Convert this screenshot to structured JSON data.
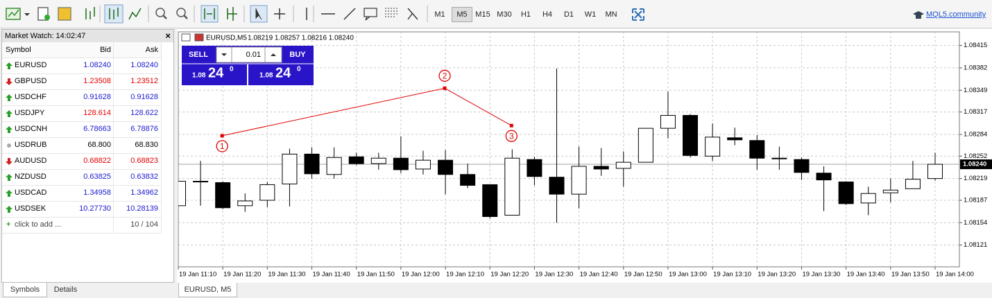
{
  "toolbar": {
    "timeframes": [
      "M1",
      "M5",
      "M15",
      "M30",
      "H1",
      "H4",
      "D1",
      "W1",
      "MN"
    ],
    "active_timeframe": "M5",
    "community_link": "MQL5.community"
  },
  "market_watch": {
    "title": "Market Watch: 14:02:47",
    "columns": [
      "Symbol",
      "Bid",
      "Ask"
    ],
    "rows": [
      {
        "symbol": "EURUSD",
        "bid": "1.08240",
        "ask": "1.08240",
        "trend": "up",
        "bid_color": "#1a1ad0",
        "ask_color": "#1a1ad0"
      },
      {
        "symbol": "GBPUSD",
        "bid": "1.23508",
        "ask": "1.23512",
        "trend": "down",
        "bid_color": "#e00000",
        "ask_color": "#e00000"
      },
      {
        "symbol": "USDCHF",
        "bid": "0.91628",
        "ask": "0.91628",
        "trend": "up",
        "bid_color": "#1a1ad0",
        "ask_color": "#1a1ad0"
      },
      {
        "symbol": "USDJPY",
        "bid": "128.614",
        "ask": "128.622",
        "trend": "up",
        "bid_color": "#e00000",
        "ask_color": "#1a1ad0"
      },
      {
        "symbol": "USDCNH",
        "bid": "6.78663",
        "ask": "6.78876",
        "trend": "up",
        "bid_color": "#1a1ad0",
        "ask_color": "#1a1ad0"
      },
      {
        "symbol": "USDRUB",
        "bid": "68.800",
        "ask": "68.830",
        "trend": "none",
        "bid_color": "#000000",
        "ask_color": "#000000"
      },
      {
        "symbol": "AUDUSD",
        "bid": "0.68822",
        "ask": "0.68823",
        "trend": "down",
        "bid_color": "#e00000",
        "ask_color": "#e00000"
      },
      {
        "symbol": "NZDUSD",
        "bid": "0.63825",
        "ask": "0.63832",
        "trend": "up",
        "bid_color": "#1a1ad0",
        "ask_color": "#1a1ad0"
      },
      {
        "symbol": "USDCAD",
        "bid": "1.34958",
        "ask": "1.34962",
        "trend": "up",
        "bid_color": "#1a1ad0",
        "ask_color": "#1a1ad0"
      },
      {
        "symbol": "USDSEK",
        "bid": "10.27730",
        "ask": "10.28139",
        "trend": "up",
        "bid_color": "#1a1ad0",
        "ask_color": "#1a1ad0"
      }
    ],
    "add_label": "click to add ...",
    "count": "10 / 104",
    "tabs": [
      "Symbols",
      "Details"
    ]
  },
  "trade_panel": {
    "sell": "SELL",
    "lot": "0.01",
    "buy": "BUY",
    "bid_prefix": "1.08",
    "bid_big": "24",
    "bid_sup": "0",
    "ask_prefix": "1.08",
    "ask_big": "24",
    "ask_sup": "0"
  },
  "chart_tab": "EURUSD, M5",
  "chart_data": {
    "type": "candlestick",
    "symbol_header": "EURUSD,M5",
    "ohlc_header": "1.08219 1.08257 1.08216 1.08240",
    "categories": [
      "19 Jan 11:10",
      null,
      "19 Jan 11:20",
      null,
      "19 Jan 11:30",
      null,
      "19 Jan 11:40",
      null,
      "19 Jan 11:50",
      null,
      "19 Jan 12:00",
      null,
      "19 Jan 12:10",
      null,
      "19 Jan 12:20",
      null,
      "19 Jan 12:30",
      null,
      "19 Jan 12:40",
      null,
      "19 Jan 12:50",
      null,
      "19 Jan 13:00",
      null,
      "19 Jan 13:10",
      null,
      "19 Jan 13:20",
      null,
      "19 Jan 13:30",
      null,
      "19 Jan 13:40",
      null,
      "19 Jan 13:50",
      null,
      "19 Jan 14:00"
    ],
    "open": [
      1.08179,
      1.08215,
      1.08213,
      1.08179,
      1.08187,
      1.08211,
      1.08255,
      1.08225,
      1.08251,
      1.08241,
      1.08249,
      1.08233,
      1.08246,
      1.08225,
      1.0821,
      1.08165,
      1.08247,
      1.08221,
      1.08196,
      1.08237,
      1.08234,
      1.08243,
      1.08293,
      1.08312,
      1.08252,
      1.08279,
      1.08275,
      1.08248,
      1.08247,
      1.08227,
      1.08214,
      1.08183,
      1.08198,
      1.08204,
      1.08219
    ],
    "high": [
      1.08215,
      1.08245,
      1.08215,
      1.08197,
      1.08214,
      1.08263,
      1.08265,
      1.08265,
      1.08257,
      1.08257,
      1.08281,
      1.0826,
      1.08261,
      1.08241,
      1.0821,
      1.08262,
      1.08251,
      1.08381,
      1.08266,
      1.08264,
      1.08259,
      1.08293,
      1.08347,
      1.08314,
      1.083,
      1.08294,
      1.08283,
      1.08266,
      1.0825,
      1.08237,
      1.08215,
      1.08207,
      1.08219,
      1.08245,
      1.08257
    ],
    "low": [
      1.08179,
      1.08179,
      1.08174,
      1.0817,
      1.08177,
      1.08178,
      1.08219,
      1.08219,
      1.08239,
      1.08232,
      1.08227,
      1.08225,
      1.08196,
      1.08205,
      1.0816,
      1.08165,
      1.08209,
      1.08154,
      1.08175,
      1.08223,
      1.08207,
      1.08243,
      1.08278,
      1.0825,
      1.08245,
      1.08268,
      1.08232,
      1.08232,
      1.08217,
      1.08171,
      1.0818,
      1.08165,
      1.08184,
      1.08204,
      1.08216
    ],
    "close": [
      1.08215,
      1.08214,
      1.08176,
      1.08186,
      1.0821,
      1.08255,
      1.08226,
      1.0825,
      1.08241,
      1.08249,
      1.08232,
      1.08246,
      1.08225,
      1.08209,
      1.08163,
      1.08249,
      1.08222,
      1.08196,
      1.08237,
      1.08233,
      1.08243,
      1.08293,
      1.08312,
      1.08253,
      1.0828,
      1.08276,
      1.08249,
      1.08249,
      1.08228,
      1.08217,
      1.08182,
      1.08197,
      1.08202,
      1.08218,
      1.0824
    ],
    "up_color": "#ffffff",
    "down_color": "#000000",
    "ylim": [
      1.08089,
      1.08435
    ],
    "yticks": [
      1.08415,
      1.08382,
      1.08349,
      1.08317,
      1.08284,
      1.08252,
      1.08219,
      1.08187,
      1.08154,
      1.08121
    ],
    "grid": true,
    "current_price": {
      "value": 1.0824,
      "label": "1.08240"
    },
    "annotation_color": "#e00000",
    "annotations": [
      {
        "label": "1",
        "value": 1.08282
      },
      {
        "label": "2",
        "value": 1.08352
      },
      {
        "label": "3",
        "value": 1.08297
      }
    ]
  }
}
